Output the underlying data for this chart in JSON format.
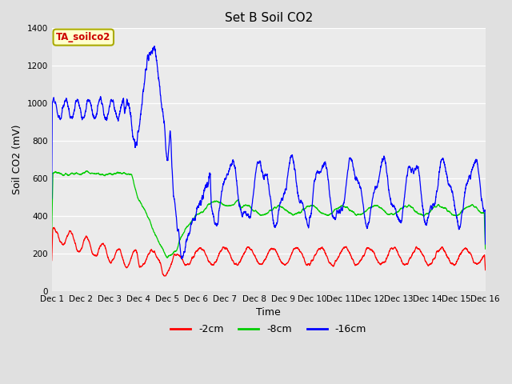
{
  "title": "Set B Soil CO2",
  "ylabel": "Soil CO2 (mV)",
  "xlabel": "Time",
  "tag_label": "TA_soilco2",
  "tag_facecolor": "#ffffcc",
  "tag_edgecolor": "#aaaa00",
  "tag_textcolor": "#cc0000",
  "xlim": [
    0,
    15
  ],
  "ylim": [
    0,
    1400
  ],
  "yticks": [
    0,
    200,
    400,
    600,
    800,
    1000,
    1200,
    1400
  ],
  "xtick_labels": [
    "Dec 1",
    "Dec 2",
    "Dec 3",
    "Dec 4",
    "Dec 5",
    "Dec 6",
    "Dec 7",
    "Dec 8",
    "Dec 9",
    "Dec 9Dec 10",
    "Dec 10Dec 11",
    "Dec 11Dec 12",
    "Dec 12Dec 13",
    "Dec 13Dec 14",
    "Dec 14Dec 15",
    "Dec 15Dec 16"
  ],
  "line_colors": [
    "#ff0000",
    "#00cc00",
    "#0000ff"
  ],
  "line_labels": [
    "-2cm",
    "-8cm",
    "-16cm"
  ],
  "fig_facecolor": "#e0e0e0",
  "plot_facecolor": "#ebebeb",
  "grid_color": "#ffffff",
  "title_fontsize": 11,
  "axis_label_fontsize": 9,
  "tick_fontsize": 7.5
}
